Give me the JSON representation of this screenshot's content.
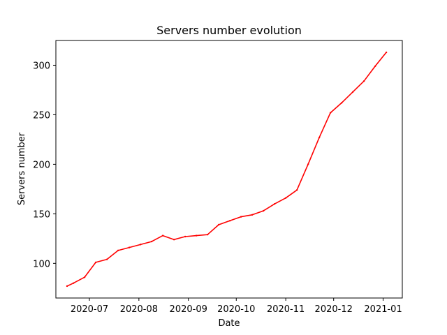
{
  "chart_data": {
    "type": "line",
    "title": "Servers number evolution",
    "xlabel": "Date",
    "ylabel": "Servers number",
    "x_ticks": [
      "2020-07",
      "2020-08",
      "2020-09",
      "2020-10",
      "2020-11",
      "2020-12",
      "2021-01"
    ],
    "y_ticks": [
      100,
      150,
      200,
      250,
      300
    ],
    "xlim": [
      "2020-06-10",
      "2021-01-13"
    ],
    "ylim": [
      65,
      325
    ],
    "grid": false,
    "line_color": "#ff0000",
    "series": [
      {
        "points": [
          {
            "x": "2020-06-17",
            "y": 77
          },
          {
            "x": "2020-06-21",
            "y": 80
          },
          {
            "x": "2020-06-28",
            "y": 86
          },
          {
            "x": "2020-07-05",
            "y": 101
          },
          {
            "x": "2020-07-12",
            "y": 104
          },
          {
            "x": "2020-07-19",
            "y": 113
          },
          {
            "x": "2020-07-26",
            "y": 116
          },
          {
            "x": "2020-08-02",
            "y": 119
          },
          {
            "x": "2020-08-09",
            "y": 122
          },
          {
            "x": "2020-08-16",
            "y": 128
          },
          {
            "x": "2020-08-23",
            "y": 124
          },
          {
            "x": "2020-08-30",
            "y": 127
          },
          {
            "x": "2020-09-06",
            "y": 128
          },
          {
            "x": "2020-09-13",
            "y": 129
          },
          {
            "x": "2020-09-20",
            "y": 139
          },
          {
            "x": "2020-09-27",
            "y": 143
          },
          {
            "x": "2020-10-04",
            "y": 147
          },
          {
            "x": "2020-10-11",
            "y": 149
          },
          {
            "x": "2020-10-18",
            "y": 153
          },
          {
            "x": "2020-10-25",
            "y": 160
          },
          {
            "x": "2020-11-01",
            "y": 166
          },
          {
            "x": "2020-11-08",
            "y": 174
          },
          {
            "x": "2020-11-15",
            "y": 200
          },
          {
            "x": "2020-11-22",
            "y": 227
          },
          {
            "x": "2020-11-29",
            "y": 252
          },
          {
            "x": "2020-12-06",
            "y": 262
          },
          {
            "x": "2020-12-13",
            "y": 273
          },
          {
            "x": "2020-12-20",
            "y": 284
          },
          {
            "x": "2020-12-27",
            "y": 299
          },
          {
            "x": "2021-01-03",
            "y": 313
          }
        ]
      }
    ]
  }
}
